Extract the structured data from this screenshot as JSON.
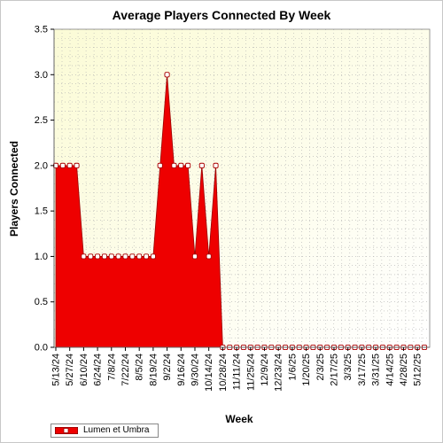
{
  "chart_data": {
    "type": "area",
    "title": "Average Players Connected By Week",
    "xlabel": "Week",
    "ylabel": "Players Connected",
    "ylim": [
      0,
      3.5
    ],
    "yticks": [
      "0.0",
      "0.5",
      "1.0",
      "1.5",
      "2.0",
      "2.5",
      "3.0",
      "3.5"
    ],
    "xtick_labels": [
      "5/13/24",
      "5/27/24",
      "6/10/24",
      "6/24/24",
      "7/8/24",
      "7/22/24",
      "8/5/24",
      "8/19/24",
      "9/2/24",
      "9/16/24",
      "9/30/24",
      "10/14/24",
      "10/28/24",
      "11/11/24",
      "11/25/24",
      "12/9/24",
      "12/23/24",
      "1/6/25",
      "1/20/25",
      "2/3/25",
      "2/17/25",
      "3/3/25",
      "3/17/25",
      "3/31/25",
      "4/14/25",
      "4/28/25",
      "5/12/25"
    ],
    "grid": true,
    "legend_position": "bottom-left",
    "series": [
      {
        "name": "Lumen et Umbra",
        "color": "#ee0000",
        "values": [
          2,
          2,
          2,
          2,
          1,
          1,
          1,
          1,
          1,
          1,
          1,
          1,
          1,
          1,
          1,
          2,
          3,
          2,
          2,
          2,
          1,
          2,
          1,
          2,
          0,
          0,
          0,
          0,
          0,
          0,
          0,
          0,
          0,
          0,
          0,
          0,
          0,
          0,
          0,
          0,
          0,
          0,
          0,
          0,
          0,
          0,
          0,
          0,
          0,
          0,
          0,
          0,
          0,
          0
        ]
      }
    ]
  }
}
